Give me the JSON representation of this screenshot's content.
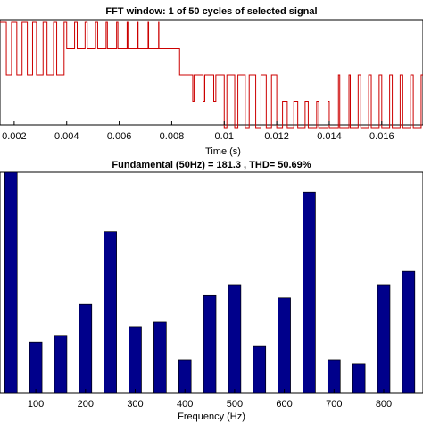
{
  "chart_data": [
    {
      "type": "line",
      "title": "FFT window: 1 of 50 cycles of selected signal",
      "x_label": "Time (s)",
      "xlim": [
        0.00146,
        0.01757
      ],
      "ylim": [
        -1.9,
        2.1
      ],
      "xticks": [
        0.002,
        0.004,
        0.006,
        0.008,
        0.01,
        0.012,
        0.014,
        0.016
      ],
      "series": [
        {
          "color": "#cc0000",
          "x": [
            0.00146,
            0.0017,
            0.0019,
            0.0021,
            0.0023,
            0.0025,
            0.0027,
            0.00285,
            0.0031,
            0.00325,
            0.0035,
            0.00362,
            0.0039,
            0.004,
            0.0043,
            0.0044,
            0.0047,
            0.00478,
            0.0051,
            0.00518,
            0.0055,
            0.00555,
            0.0059,
            0.00595,
            0.0063,
            0.00633,
            0.0067,
            0.00672,
            0.0071,
            0.00712,
            0.0075,
            0.00751,
            0.008,
            0.0083,
            0.0088,
            0.00885,
            0.0092,
            0.00926,
            0.0096,
            0.00968,
            0.01,
            0.0101,
            0.0104,
            0.01052,
            0.0108,
            0.01095,
            0.0112,
            0.0114,
            0.0116,
            0.0118,
            0.012,
            0.01222,
            0.0124,
            0.01265,
            0.0128,
            0.01308,
            0.0132,
            0.01352,
            0.0136,
            0.01395,
            0.014,
            0.01435,
            0.0144,
            0.01475,
            0.0148,
            0.0151,
            0.0152,
            0.0155,
            0.0156,
            0.0159,
            0.016,
            0.0163,
            0.0164,
            0.0167,
            0.0168,
            0.0171,
            0.0172,
            0.0175,
            0.01757
          ],
          "values": [
            2,
            0,
            2,
            0,
            2,
            0,
            2,
            0,
            2,
            0,
            2,
            0,
            2,
            1,
            2,
            1,
            2,
            1,
            2,
            1,
            2,
            1,
            2,
            1,
            2,
            1,
            2,
            1,
            2,
            1,
            2,
            1,
            1,
            0,
            -1,
            0,
            -1,
            0,
            -1,
            0,
            -2,
            0,
            -2,
            0,
            -2,
            0,
            -2,
            0,
            -2,
            0,
            -2,
            -1,
            -2,
            -1,
            -2,
            -1,
            -2,
            -1,
            -2,
            -1,
            -2,
            0,
            -2,
            0,
            -2,
            0,
            -2,
            0,
            -2,
            0,
            -2,
            0,
            -2,
            0,
            -2,
            0,
            -2,
            0,
            0
          ]
        }
      ]
    },
    {
      "type": "bar",
      "title": "Fundamental (50Hz) = 181.3 , THD= 50.69%",
      "x_label": "Frequency (Hz)",
      "xlim": [
        28,
        879
      ],
      "ylim": [
        0,
        10
      ],
      "bar_width": 25,
      "color": "#00008b",
      "xticks": [
        100,
        200,
        300,
        400,
        500,
        600,
        700,
        800
      ],
      "x": [
        50,
        100,
        150,
        200,
        250,
        300,
        350,
        400,
        450,
        500,
        550,
        600,
        650,
        700,
        750,
        800,
        850
      ],
      "values": [
        10,
        2.3,
        2.6,
        4.0,
        7.3,
        3.0,
        3.2,
        1.5,
        4.4,
        4.9,
        2.1,
        4.3,
        9.1,
        1.5,
        1.3,
        4.9,
        5.5
      ]
    }
  ]
}
